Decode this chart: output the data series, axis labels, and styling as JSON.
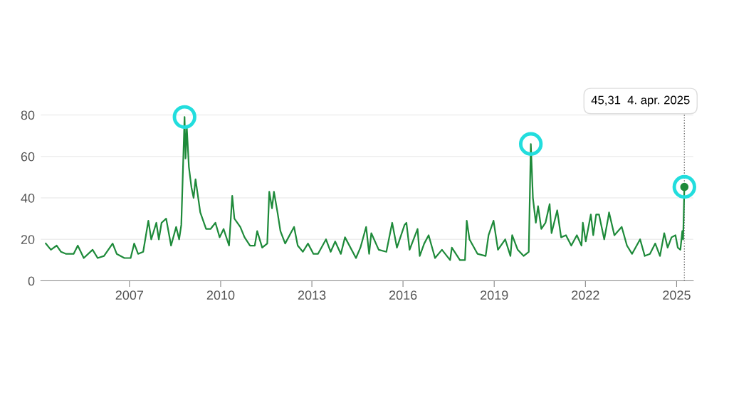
{
  "chart_data": {
    "type": "line",
    "grid": "y",
    "legend": false,
    "xlim": [
      "2004-02-01",
      "2025-07-20"
    ],
    "ylim": [
      0,
      85
    ],
    "xticks": [
      {
        "value": "2007-01-01",
        "label": "2007"
      },
      {
        "value": "2010-01-01",
        "label": "2010"
      },
      {
        "value": "2013-01-01",
        "label": "2013"
      },
      {
        "value": "2016-01-01",
        "label": "2016"
      },
      {
        "value": "2019-01-01",
        "label": "2019"
      },
      {
        "value": "2022-01-01",
        "label": "2022"
      },
      {
        "value": "2025-01-01",
        "label": "2025"
      }
    ],
    "yticks": [
      0,
      20,
      40,
      60,
      80
    ],
    "annotations": [
      "45,31  4. apr. 2025"
    ],
    "ref_lines": [
      {
        "axis": "x",
        "value": "2025-04-04",
        "color": "#777777",
        "line_style": "dotted"
      }
    ],
    "series": [
      {
        "color": "#1e8a3a",
        "line_style": "solid",
        "marker": "none",
        "x": [
          "2004-04-01",
          "2004-06-01",
          "2004-08-10",
          "2004-10-01",
          "2004-12-01",
          "2005-03-01",
          "2005-04-20",
          "2005-07-01",
          "2005-10-15",
          "2005-12-15",
          "2006-03-01",
          "2006-06-13",
          "2006-08-01",
          "2006-11-01",
          "2007-01-15",
          "2007-02-27",
          "2007-04-15",
          "2007-06-15",
          "2007-08-16",
          "2007-09-20",
          "2007-11-20",
          "2007-12-20",
          "2008-01-22",
          "2008-03-17",
          "2008-05-15",
          "2008-07-15",
          "2008-08-20",
          "2008-09-15",
          "2008-10-24",
          "2008-11-05",
          "2008-11-20",
          "2008-12-15",
          "2009-01-15",
          "2009-02-10",
          "2009-03-05",
          "2009-05-01",
          "2009-07-10",
          "2009-09-01",
          "2009-10-30",
          "2009-12-20",
          "2010-02-05",
          "2010-04-12",
          "2010-05-20",
          "2010-06-15",
          "2010-08-25",
          "2010-10-15",
          "2010-12-20",
          "2011-02-15",
          "2011-03-16",
          "2011-05-15",
          "2011-07-15",
          "2011-08-08",
          "2011-09-10",
          "2011-10-03",
          "2011-11-15",
          "2011-12-20",
          "2012-02-15",
          "2012-06-01",
          "2012-07-15",
          "2012-09-15",
          "2012-11-15",
          "2013-01-20",
          "2013-03-15",
          "2013-06-20",
          "2013-08-15",
          "2013-10-08",
          "2013-12-15",
          "2014-02-03",
          "2014-06-15",
          "2014-08-07",
          "2014-10-15",
          "2014-11-20",
          "2014-12-16",
          "2015-03-15",
          "2015-06-15",
          "2015-08-24",
          "2015-10-20",
          "2016-01-20",
          "2016-02-11",
          "2016-03-20",
          "2016-06-24",
          "2016-07-20",
          "2016-09-12",
          "2016-11-04",
          "2017-01-20",
          "2017-04-13",
          "2017-07-20",
          "2017-08-10",
          "2017-11-15",
          "2018-01-15",
          "2018-02-05",
          "2018-03-10",
          "2018-06-15",
          "2018-09-20",
          "2018-10-25",
          "2018-12-24",
          "2019-02-15",
          "2019-05-13",
          "2019-07-15",
          "2019-08-05",
          "2019-10-10",
          "2019-12-20",
          "2020-02-20",
          "2020-03-16",
          "2020-04-10",
          "2020-05-15",
          "2020-06-11",
          "2020-07-20",
          "2020-09-08",
          "2020-10-28",
          "2020-11-20",
          "2021-01-27",
          "2021-03-15",
          "2021-05-12",
          "2021-07-15",
          "2021-09-20",
          "2021-11-15",
          "2021-12-01",
          "2022-01-05",
          "2022-03-07",
          "2022-04-05",
          "2022-05-10",
          "2022-06-13",
          "2022-08-15",
          "2022-09-30",
          "2022-10-12",
          "2022-12-15",
          "2023-03-13",
          "2023-05-15",
          "2023-07-15",
          "2023-10-20",
          "2023-12-15",
          "2024-02-15",
          "2024-04-19",
          "2024-06-15",
          "2024-08-05",
          "2024-09-15",
          "2024-11-01",
          "2024-12-18",
          "2025-01-15",
          "2025-02-15",
          "2025-03-10",
          "2025-03-20",
          "2025-04-04"
        ],
        "values": [
          18,
          15,
          17,
          14,
          13,
          13,
          17,
          11,
          15,
          11,
          12,
          18,
          13,
          11,
          11,
          18,
          13,
          14,
          29,
          20,
          28,
          20,
          28,
          30,
          17,
          26,
          20,
          27,
          79,
          59,
          74,
          55,
          45,
          40,
          49,
          33,
          25,
          25,
          28,
          21,
          25,
          17,
          41,
          30,
          26,
          21,
          17,
          17,
          24,
          16,
          18,
          43,
          35,
          43,
          33,
          24,
          18,
          26,
          17,
          14,
          18,
          13,
          13,
          20,
          14,
          19,
          13,
          21,
          11,
          16,
          26,
          13,
          23,
          15,
          14,
          28,
          16,
          27,
          28,
          15,
          25,
          12,
          18,
          22,
          11,
          15,
          10,
          16,
          10,
          10,
          29,
          20,
          13,
          12,
          22,
          29,
          15,
          20,
          12,
          22,
          15,
          12,
          14,
          66,
          40,
          28,
          36,
          25,
          28,
          37,
          23,
          34,
          21,
          22,
          17,
          22,
          17,
          28,
          19,
          32,
          22,
          32,
          32,
          20,
          30,
          33,
          22,
          26,
          17,
          13,
          20,
          12,
          13,
          18,
          12,
          23,
          16,
          21,
          22,
          16,
          15,
          24,
          20,
          45.31
        ]
      },
      {
        "type": "scatter",
        "color": "#1e8a3a",
        "marker": "circle",
        "x": [
          "2025-04-04"
        ],
        "values": [
          45.31
        ]
      },
      {
        "type": "scatter",
        "color": "#22dddd",
        "marker": "circle",
        "x": [
          "2008-10-24",
          "2020-03-16",
          "2025-04-04"
        ],
        "values": [
          79,
          66,
          45.31
        ]
      }
    ]
  }
}
